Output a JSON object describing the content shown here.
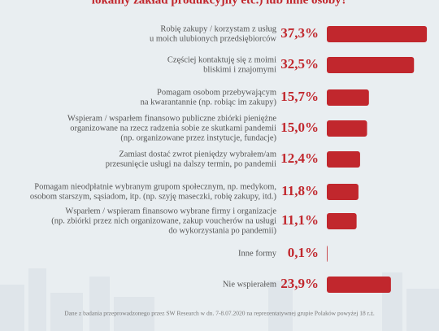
{
  "chart_data": {
    "type": "bar",
    "title": "lokalny zakład produkcyjny etc.) lub inne osoby?",
    "categories": [
      [
        "Robię zakupy / korzystam z usług",
        "u moich ulubionych przedsiębiorców"
      ],
      [
        "Częściej kontaktuję się z moimi",
        "bliskimi i znajomymi"
      ],
      [
        "Pomagam osobom przebywającym",
        "na kwarantannie (np. robiąc im zakupy)"
      ],
      [
        "Wspieram / wsparłem finansowo publiczne zbiórki pieniężne",
        "organizowane na rzecz radzenia sobie ze skutkami pandemii",
        "(np. organizowane przez instytucje, fundacje)"
      ],
      [
        "Zamiast dostać zwrot pieniędzy wybrałem/am",
        "przesunięcie usługi na dalszy termin, po pandemii"
      ],
      [
        "Pomagam nieodpłatnie wybranym grupom społecznym, np. medykom,",
        "osobom starszym, sąsiadom, itp. (np. szyję maseczki, robię zakupy, itd.)"
      ],
      [
        "Wsparłem / wspieram finansowo wybrane firmy i organizacje",
        "(np. zbiórki przez nich organizowane, zakup voucherów na usługi",
        "do wykorzystania po pandemii)"
      ],
      [
        "Inne formy"
      ],
      [
        "Nie wspierałem"
      ]
    ],
    "values": [
      37.3,
      32.5,
      15.7,
      15.0,
      12.4,
      11.8,
      11.1,
      0.1,
      23.9
    ],
    "value_labels": [
      "37,3%",
      "32,5%",
      "15,7%",
      "15,0%",
      "12,4%",
      "11,8%",
      "11,1%",
      "0,1%",
      "23,9%"
    ],
    "color": "#c1272d",
    "footnote": "Dane z badania przeprowadzonego przez SW Research w dn. 7-8.07.2020 na reprezentatywnej grupie Polaków powyżej 18 r.ż."
  }
}
